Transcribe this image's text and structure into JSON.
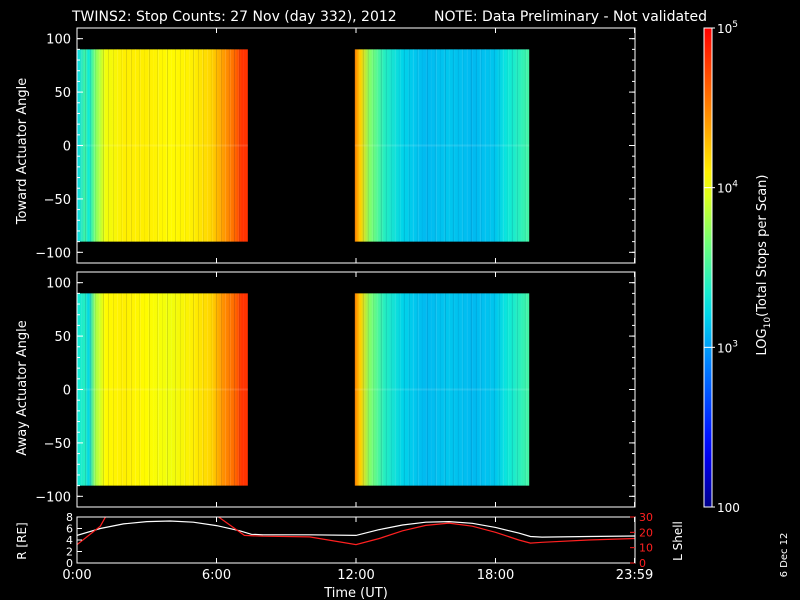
{
  "header": {
    "title": "TWINS2: Stop Counts: 27 Nov (day 332), 2012",
    "note": "NOTE: Data Preliminary - Not validated",
    "note_color": "#ff2020"
  },
  "side_date": "6 Dec 12",
  "chart_data": [
    {
      "type": "heatmap",
      "ylabel": "Toward Actuator Angle",
      "ylim": [
        -110,
        110
      ],
      "y_ticks": [
        "100",
        "50",
        "0",
        "−50",
        "−100"
      ],
      "y_tick_values": [
        100,
        50,
        0,
        -50,
        -100
      ],
      "data_y_range": [
        -90,
        90
      ],
      "segments": [
        {
          "t_start": 0.0,
          "t_end": 7.35,
          "profile_hours": [
            0.0,
            0.35,
            0.5,
            0.8,
            1.2,
            2.0,
            3.0,
            4.0,
            5.0,
            5.8,
            6.3,
            6.8,
            7.1,
            7.35
          ],
          "profile_log10": [
            3.2,
            3.5,
            3.3,
            3.7,
            4.0,
            4.1,
            4.1,
            4.05,
            4.1,
            4.2,
            4.4,
            4.6,
            4.8,
            4.8
          ]
        },
        {
          "t_start": 11.95,
          "t_end": 19.45,
          "profile_hours": [
            11.95,
            12.2,
            12.6,
            13.2,
            14.0,
            15.0,
            16.0,
            17.0,
            18.0,
            18.5,
            19.0,
            19.45
          ],
          "profile_log10": [
            4.5,
            4.2,
            3.7,
            3.4,
            3.2,
            3.1,
            3.15,
            3.1,
            3.15,
            3.3,
            3.4,
            3.5
          ]
        }
      ]
    },
    {
      "type": "heatmap",
      "ylabel": "Away Actuator Angle",
      "ylim": [
        -110,
        110
      ],
      "y_ticks": [
        "100",
        "50",
        "0",
        "−50",
        "−100"
      ],
      "y_tick_values": [
        100,
        50,
        0,
        -50,
        -100
      ],
      "data_y_range": [
        -90,
        90
      ],
      "segments": [
        {
          "t_start": 0.0,
          "t_end": 7.35,
          "profile_hours": [
            0.0,
            0.35,
            0.5,
            0.8,
            1.2,
            2.0,
            3.0,
            4.0,
            5.0,
            5.8,
            6.3,
            6.8,
            7.1,
            7.35
          ],
          "profile_log10": [
            3.3,
            3.4,
            3.2,
            3.8,
            4.05,
            4.1,
            4.05,
            4.0,
            4.1,
            4.2,
            4.45,
            4.6,
            4.8,
            4.8
          ]
        },
        {
          "t_start": 11.95,
          "t_end": 19.45,
          "profile_hours": [
            11.95,
            12.2,
            12.6,
            13.2,
            14.0,
            15.0,
            16.0,
            17.0,
            18.0,
            18.5,
            19.0,
            19.45
          ],
          "profile_log10": [
            4.5,
            4.2,
            3.7,
            3.4,
            3.2,
            3.1,
            3.15,
            3.1,
            3.15,
            3.3,
            3.4,
            3.5
          ]
        }
      ]
    },
    {
      "type": "line",
      "ylabel": "R [RE]",
      "y2label": "L Shell",
      "xlabel": "Time (UT)",
      "x_ticks": [
        "0:00",
        "6:00",
        "12:00",
        "18:00",
        "23:59"
      ],
      "x_tick_hours": [
        0,
        6,
        12,
        18,
        23.98
      ],
      "xlim": [
        0,
        24
      ],
      "ylim": [
        0,
        8
      ],
      "y_ticks": [
        "8",
        "6",
        "4",
        "2",
        "0"
      ],
      "y_tick_values": [
        8,
        6,
        4,
        2,
        0
      ],
      "y2lim": [
        0,
        30
      ],
      "y2_ticks": [
        "30",
        "20",
        "10",
        "0"
      ],
      "y2_tick_values": [
        30,
        20,
        10,
        0
      ],
      "series": [
        {
          "color": "#ffffff",
          "axis": "left",
          "x": [
            0,
            1,
            2,
            3,
            4,
            5,
            6,
            7,
            7.5,
            8,
            10,
            12,
            13,
            14,
            15,
            16,
            17,
            18,
            19,
            19.5,
            20,
            22,
            24
          ],
          "y": [
            4.8,
            6.0,
            6.8,
            7.2,
            7.3,
            7.1,
            6.5,
            5.6,
            5.0,
            4.9,
            4.9,
            4.8,
            5.8,
            6.6,
            7.1,
            7.2,
            6.9,
            6.2,
            5.2,
            4.6,
            4.5,
            4.6,
            4.7
          ]
        },
        {
          "color": "#ff2020",
          "axis": "right",
          "x": [
            0,
            1.0,
            1.3
          ],
          "y": [
            12,
            24,
            32
          ]
        },
        {
          "color": "#ff2020",
          "axis": "right",
          "x": [
            6.0,
            7.2,
            8,
            10,
            12,
            13,
            14,
            15,
            16,
            17,
            18,
            19,
            19.5,
            20,
            22,
            24
          ],
          "y": [
            31,
            18,
            17.5,
            17,
            12,
            16,
            21,
            24.5,
            26,
            24,
            20,
            15,
            13,
            13.5,
            15,
            16
          ]
        }
      ]
    }
  ],
  "colorbar": {
    "label": "LOG10(Total Stops per Scan)",
    "label_main": "LOG",
    "label_sub": "10",
    "label_rest": "(Total Stops per Scan)",
    "log_range": [
      2,
      5
    ],
    "ticks": [
      {
        "log10": 5,
        "base": "10",
        "exp": "5"
      },
      {
        "log10": 4,
        "base": "10",
        "exp": "4"
      },
      {
        "log10": 3,
        "base": "10",
        "exp": "3"
      },
      {
        "log10": 2,
        "base": "100",
        "exp": ""
      }
    ]
  }
}
